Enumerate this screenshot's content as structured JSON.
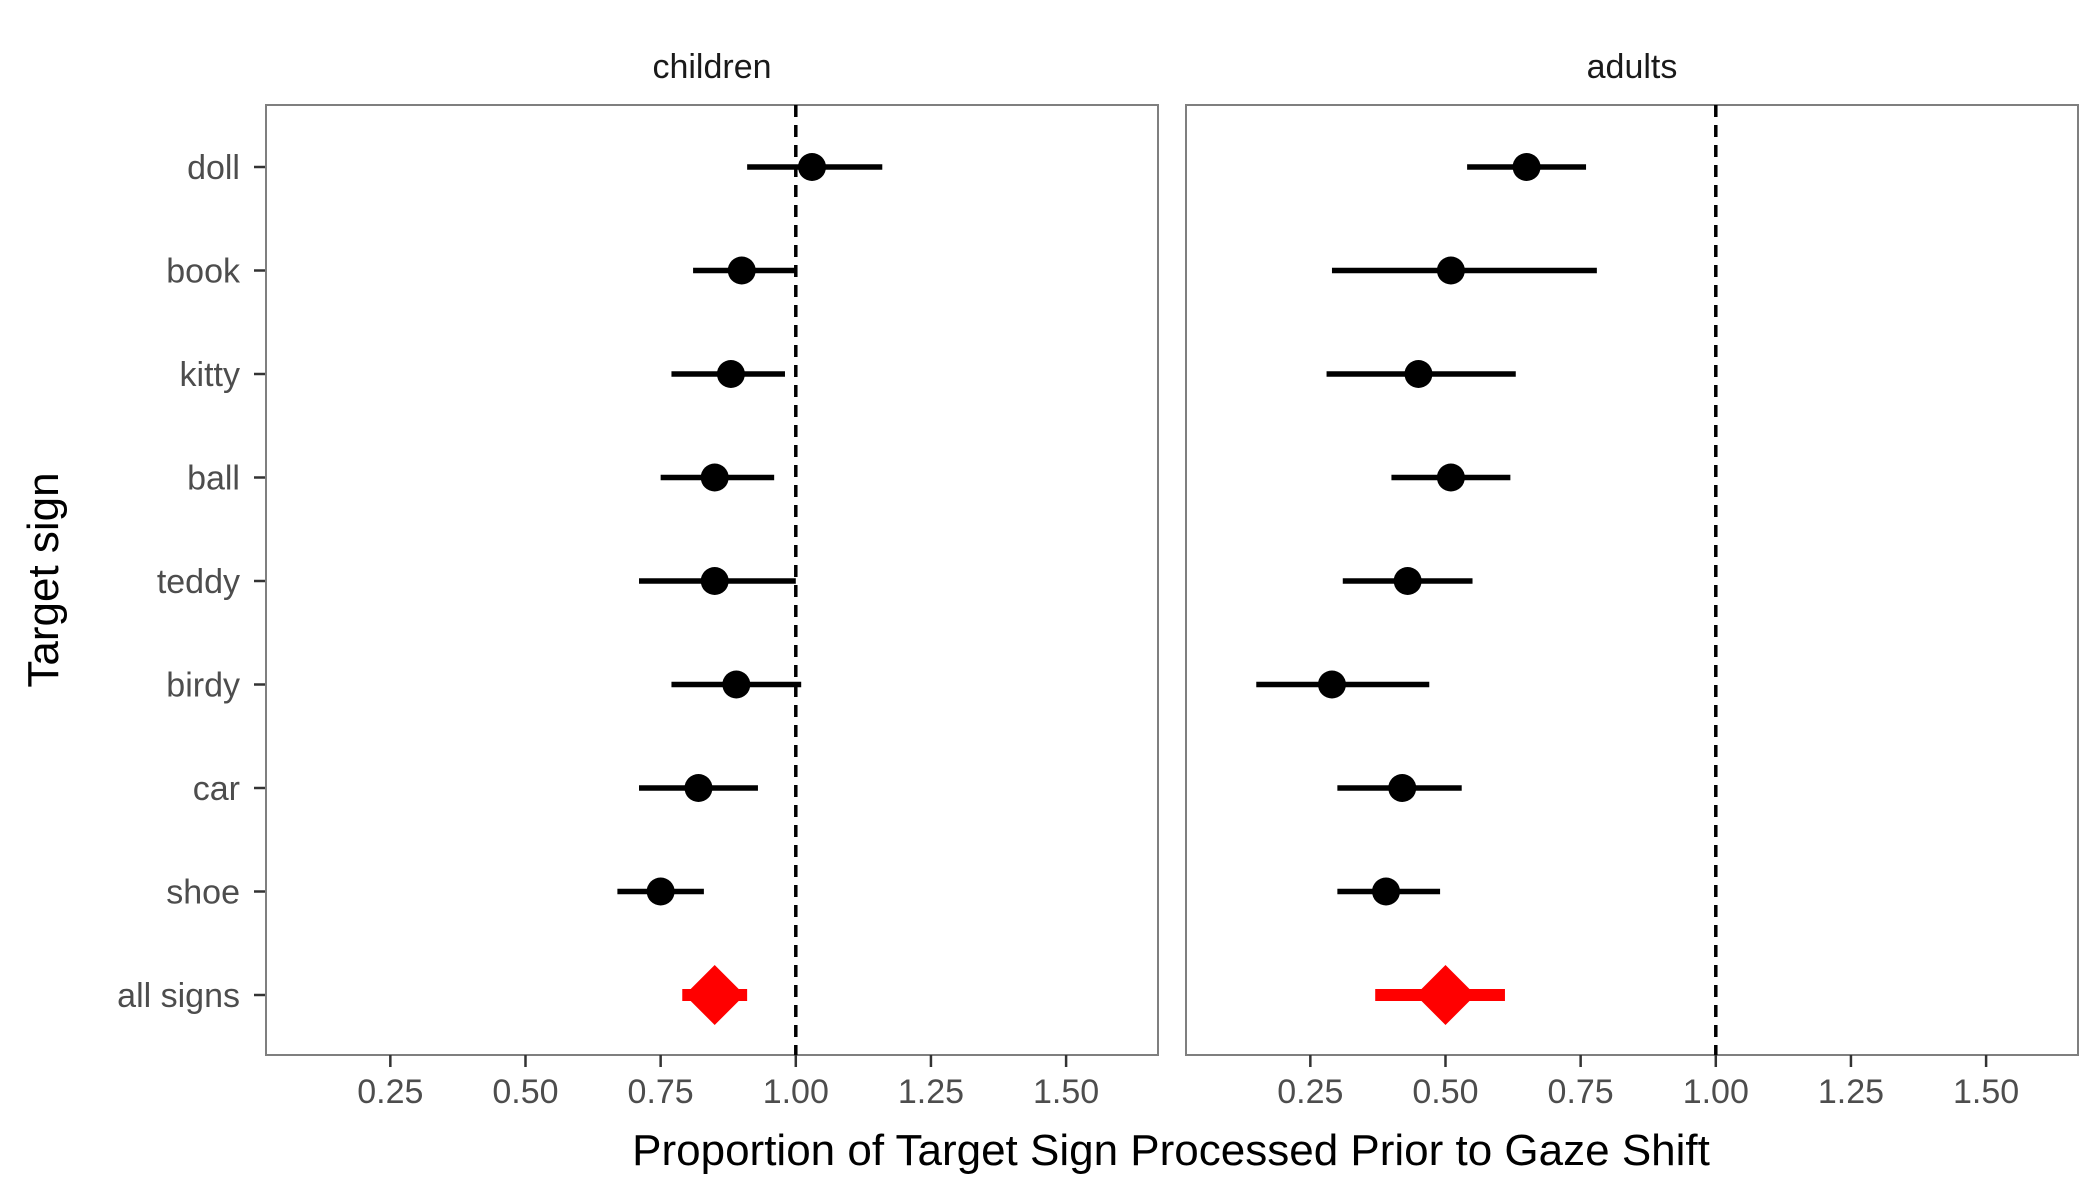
{
  "chart_data": {
    "type": "scatter",
    "subtype": "forest-plot-with-error-bars",
    "xlabel": "Proportion of Target Sign Processed Prior to Gaze Shift",
    "ylabel": "Target sign",
    "xlim": [
      0.02,
      1.67
    ],
    "xticks": [
      "0.25",
      "0.50",
      "0.75",
      "1.00",
      "1.25",
      "1.50"
    ],
    "reference_line_x": 1.0,
    "grid": false,
    "categories": [
      "doll",
      "book",
      "kitty",
      "ball",
      "teddy",
      "birdy",
      "car",
      "shoe",
      "all signs"
    ],
    "summary_category": "all signs",
    "colors": {
      "point": "#000000",
      "summary": "#ff0000",
      "panel_border": "#7f7f7f"
    },
    "panels": [
      {
        "name": "children",
        "points": [
          {
            "label": "doll",
            "mean": 1.03,
            "lower": 0.91,
            "upper": 1.16
          },
          {
            "label": "book",
            "mean": 0.9,
            "lower": 0.81,
            "upper": 1.0
          },
          {
            "label": "kitty",
            "mean": 0.88,
            "lower": 0.77,
            "upper": 0.98
          },
          {
            "label": "ball",
            "mean": 0.85,
            "lower": 0.75,
            "upper": 0.96
          },
          {
            "label": "teddy",
            "mean": 0.85,
            "lower": 0.71,
            "upper": 1.0
          },
          {
            "label": "birdy",
            "mean": 0.89,
            "lower": 0.77,
            "upper": 1.01
          },
          {
            "label": "car",
            "mean": 0.82,
            "lower": 0.71,
            "upper": 0.93
          },
          {
            "label": "shoe",
            "mean": 0.75,
            "lower": 0.67,
            "upper": 0.83
          },
          {
            "label": "all signs",
            "mean": 0.85,
            "lower": 0.79,
            "upper": 0.91
          }
        ]
      },
      {
        "name": "adults",
        "points": [
          {
            "label": "doll",
            "mean": 0.65,
            "lower": 0.54,
            "upper": 0.76
          },
          {
            "label": "book",
            "mean": 0.51,
            "lower": 0.29,
            "upper": 0.78
          },
          {
            "label": "kitty",
            "mean": 0.45,
            "lower": 0.28,
            "upper": 0.63
          },
          {
            "label": "ball",
            "mean": 0.51,
            "lower": 0.4,
            "upper": 0.62
          },
          {
            "label": "teddy",
            "mean": 0.43,
            "lower": 0.31,
            "upper": 0.55
          },
          {
            "label": "birdy",
            "mean": 0.29,
            "lower": 0.15,
            "upper": 0.47
          },
          {
            "label": "car",
            "mean": 0.42,
            "lower": 0.3,
            "upper": 0.53
          },
          {
            "label": "shoe",
            "mean": 0.39,
            "lower": 0.3,
            "upper": 0.49
          },
          {
            "label": "all signs",
            "mean": 0.5,
            "lower": 0.37,
            "upper": 0.61
          }
        ]
      }
    ]
  }
}
